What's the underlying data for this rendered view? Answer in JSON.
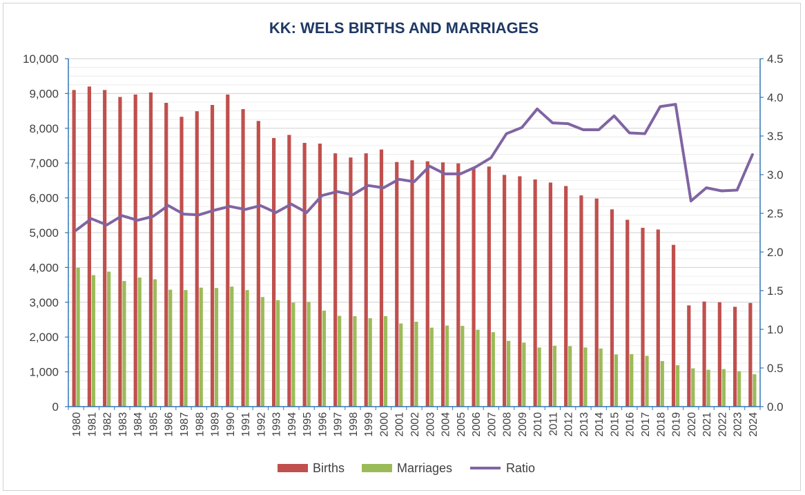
{
  "chart_data": {
    "type": "bar+line",
    "title": "KK: WELS BIRTHS AND MARRIAGES",
    "categories": [
      "1980",
      "1981",
      "1982",
      "1983",
      "1984",
      "1985",
      "1986",
      "1987",
      "1988",
      "1989",
      "1990",
      "1991",
      "1992",
      "1993",
      "1994",
      "1995",
      "1996",
      "1997",
      "1998",
      "1999",
      "2000",
      "2001",
      "2002",
      "2003",
      "2004",
      "2005",
      "2006",
      "2007",
      "2008",
      "2009",
      "2010",
      "2011",
      "2012",
      "2013",
      "2014",
      "2015",
      "2016",
      "2017",
      "2018",
      "2019",
      "2020",
      "2021",
      "2022",
      "2023",
      "2024"
    ],
    "series": [
      {
        "name": "Births",
        "type": "bar",
        "axis": "left",
        "color": "#c0504d",
        "values": [
          9100,
          9200,
          9100,
          8900,
          8970,
          9030,
          8730,
          8330,
          8490,
          8670,
          8970,
          8550,
          8210,
          7720,
          7810,
          7580,
          7560,
          7280,
          7160,
          7280,
          7390,
          7030,
          7080,
          7050,
          7020,
          6990,
          6850,
          6900,
          6660,
          6620,
          6530,
          6440,
          6340,
          6070,
          5980,
          5670,
          5370,
          5140,
          5090,
          4650,
          2910,
          3020,
          3000,
          2870,
          2980
        ]
      },
      {
        "name": "Marriages",
        "type": "bar",
        "axis": "left",
        "color": "#9bbb59",
        "values": [
          3990,
          3780,
          3880,
          3610,
          3710,
          3660,
          3360,
          3350,
          3420,
          3410,
          3450,
          3350,
          3150,
          3060,
          2990,
          3010,
          2760,
          2610,
          2600,
          2540,
          2600,
          2390,
          2440,
          2270,
          2330,
          2320,
          2210,
          2140,
          1890,
          1840,
          1700,
          1750,
          1740,
          1700,
          1670,
          1500,
          1510,
          1460,
          1310,
          1190,
          1100,
          1060,
          1080,
          1020,
          930
        ]
      },
      {
        "name": "Ratio",
        "type": "line",
        "axis": "right",
        "color": "#8064a2",
        "values": [
          2.28,
          2.43,
          2.35,
          2.47,
          2.41,
          2.46,
          2.6,
          2.49,
          2.48,
          2.54,
          2.59,
          2.55,
          2.6,
          2.51,
          2.62,
          2.51,
          2.73,
          2.78,
          2.74,
          2.86,
          2.83,
          2.94,
          2.91,
          3.11,
          3.01,
          3.01,
          3.1,
          3.22,
          3.53,
          3.61,
          3.85,
          3.67,
          3.66,
          3.58,
          3.58,
          3.76,
          3.54,
          3.53,
          3.88,
          3.91,
          2.66,
          2.83,
          2.79,
          2.8,
          3.26
        ]
      }
    ],
    "y_left": {
      "min": 0,
      "max": 10000,
      "step": 1000,
      "tick_labels": [
        "0",
        "1,000",
        "2,000",
        "3,000",
        "4,000",
        "5,000",
        "6,000",
        "7,000",
        "8,000",
        "9,000",
        "10,000"
      ]
    },
    "y_right": {
      "min": 0,
      "max": 4.5,
      "step": 0.5,
      "tick_labels": [
        "0.0",
        "0.5",
        "1.0",
        "1.5",
        "2.0",
        "2.5",
        "3.0",
        "3.5",
        "4.0",
        "4.5"
      ]
    },
    "grid": true,
    "legend": {
      "position": "bottom",
      "entries": [
        "Births",
        "Marriages",
        "Ratio"
      ]
    },
    "colors": {
      "title": "#1f3864",
      "axis": "#2e75b6",
      "grid": "#d9d9d9",
      "tick_text": "#404040"
    }
  }
}
